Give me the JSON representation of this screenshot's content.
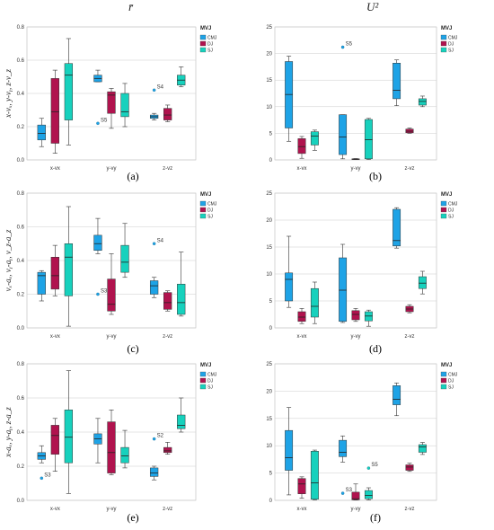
{
  "column_titles": [
    "r̄",
    "U²"
  ],
  "colors": {
    "CMJ": "#1ea3e6",
    "DJ": "#b0134e",
    "SJ": "#17d1bd",
    "whisker": "#333333",
    "grid": "#cccccc"
  },
  "chart_data": [
    {
      "type": "box",
      "panel_label": "(a)",
      "ylabel": "x-vₓ, y-vᵧ, z-v_z",
      "ylim": [
        0,
        0.8
      ],
      "yticks": [
        "0.0",
        "0.2",
        "0.4",
        "0.6",
        "0.8"
      ],
      "legend_title": "MVJ",
      "categories": [
        "x-vx",
        "y-vy",
        "z-vz"
      ],
      "series": [
        {
          "name": "CMJ",
          "boxes": [
            {
              "min": 0.08,
              "q1": 0.12,
              "median": 0.16,
              "q3": 0.21,
              "max": 0.25
            },
            {
              "min": 0.47,
              "q1": 0.47,
              "median": 0.49,
              "q3": 0.51,
              "max": 0.54
            },
            {
              "min": 0.24,
              "q1": 0.25,
              "median": 0.26,
              "q3": 0.27,
              "max": 0.28
            }
          ]
        },
        {
          "name": "DJ",
          "boxes": [
            {
              "min": 0.04,
              "q1": 0.1,
              "median": 0.29,
              "q3": 0.49,
              "max": 0.54
            },
            {
              "min": 0.19,
              "q1": 0.28,
              "median": 0.39,
              "q3": 0.41,
              "max": 0.43
            },
            {
              "min": 0.23,
              "q1": 0.24,
              "median": 0.27,
              "q3": 0.31,
              "max": 0.33
            }
          ]
        },
        {
          "name": "SJ",
          "boxes": [
            {
              "min": 0.09,
              "q1": 0.24,
              "median": 0.51,
              "q3": 0.58,
              "max": 0.73
            },
            {
              "min": 0.2,
              "q1": 0.26,
              "median": 0.29,
              "q3": 0.4,
              "max": 0.46
            },
            {
              "min": 0.44,
              "q1": 0.45,
              "median": 0.48,
              "q3": 0.51,
              "max": 0.56
            }
          ]
        }
      ],
      "outliers": [
        {
          "category": "y-vy",
          "series": "CMJ",
          "value": 0.22,
          "label": "S5"
        },
        {
          "category": "z-vz",
          "series": "CMJ",
          "value": 0.42,
          "label": "S4"
        }
      ]
    },
    {
      "type": "box",
      "panel_label": "(b)",
      "ylabel": "",
      "ylim": [
        0,
        25
      ],
      "yticks": [
        "0",
        "5",
        "10",
        "15",
        "20",
        "25"
      ],
      "legend_title": "MVJ",
      "categories": [
        "x-vx",
        "y-vy",
        "z-vz"
      ],
      "series": [
        {
          "name": "CMJ",
          "boxes": [
            {
              "min": 3.5,
              "q1": 6,
              "median": 12.3,
              "q3": 18.5,
              "max": 19.5
            },
            {
              "min": 0.2,
              "q1": 1,
              "median": 4.3,
              "q3": 8.5,
              "max": 8.5
            },
            {
              "min": 10.2,
              "q1": 11.5,
              "median": 13.1,
              "q3": 18.2,
              "max": 18.8
            }
          ]
        },
        {
          "name": "DJ",
          "boxes": [
            {
              "min": 0.3,
              "q1": 1.2,
              "median": 2.5,
              "q3": 4,
              "max": 4.4
            },
            {
              "min": 0.05,
              "q1": 0.1,
              "median": 0.15,
              "q3": 0.2,
              "max": 0.25
            },
            {
              "min": 5,
              "q1": 5.1,
              "median": 5.4,
              "q3": 5.8,
              "max": 6
            }
          ]
        },
        {
          "name": "SJ",
          "boxes": [
            {
              "min": 1.8,
              "q1": 2.8,
              "median": 4.5,
              "q3": 5.3,
              "max": 5.6
            },
            {
              "min": 0.1,
              "q1": 0.2,
              "median": 3.8,
              "q3": 7.6,
              "max": 7.8
            },
            {
              "min": 10,
              "q1": 10.3,
              "median": 11,
              "q3": 11.5,
              "max": 12
            }
          ]
        }
      ],
      "outliers": [
        {
          "category": "y-vy",
          "series": "CMJ",
          "value": 21.2,
          "label": "S5"
        }
      ]
    },
    {
      "type": "box",
      "panel_label": "(c)",
      "ylabel": "vₓ-aₓ, vᵧ-aᵧ, v_z-a_z",
      "ylim": [
        0,
        0.8
      ],
      "yticks": [
        "0.0",
        "0.2",
        "0.4",
        "0.6",
        "0.8"
      ],
      "legend_title": "MVJ",
      "categories": [
        "x-vx",
        "y-vy",
        "z-vz"
      ],
      "series": [
        {
          "name": "CMJ",
          "boxes": [
            {
              "min": 0.16,
              "q1": 0.2,
              "median": 0.31,
              "q3": 0.33,
              "max": 0.34
            },
            {
              "min": 0.44,
              "q1": 0.46,
              "median": 0.5,
              "q3": 0.55,
              "max": 0.65
            },
            {
              "min": 0.18,
              "q1": 0.2,
              "median": 0.25,
              "q3": 0.28,
              "max": 0.3
            }
          ]
        },
        {
          "name": "DJ",
          "boxes": [
            {
              "min": 0.19,
              "q1": 0.23,
              "median": 0.31,
              "q3": 0.42,
              "max": 0.49
            },
            {
              "min": 0.08,
              "q1": 0.1,
              "median": 0.14,
              "q3": 0.29,
              "max": 0.44
            },
            {
              "min": 0.1,
              "q1": 0.11,
              "median": 0.15,
              "q3": 0.21,
              "max": 0.22
            }
          ]
        },
        {
          "name": "SJ",
          "boxes": [
            {
              "min": 0.01,
              "q1": 0.19,
              "median": 0.42,
              "q3": 0.5,
              "max": 0.72
            },
            {
              "min": 0.3,
              "q1": 0.33,
              "median": 0.39,
              "q3": 0.49,
              "max": 0.62
            },
            {
              "min": 0.07,
              "q1": 0.08,
              "median": 0.15,
              "q3": 0.26,
              "max": 0.45
            }
          ]
        }
      ],
      "outliers": [
        {
          "category": "y-vy",
          "series": "CMJ",
          "value": 0.2,
          "label": "S3"
        },
        {
          "category": "z-vz",
          "series": "CMJ",
          "value": 0.5,
          "label": "S4"
        }
      ]
    },
    {
      "type": "box",
      "panel_label": "(d)",
      "ylabel": "",
      "ylim": [
        0,
        25
      ],
      "yticks": [
        "0",
        "5",
        "10",
        "15",
        "20",
        "25"
      ],
      "legend_title": "MVJ",
      "categories": [
        "x-vx",
        "y-vy",
        "z-vz"
      ],
      "series": [
        {
          "name": "CMJ",
          "boxes": [
            {
              "min": 3.8,
              "q1": 5,
              "median": 9,
              "q3": 10.2,
              "max": 17
            },
            {
              "min": 1,
              "q1": 1.2,
              "median": 7,
              "q3": 13,
              "max": 15.5
            },
            {
              "min": 14.8,
              "q1": 15.2,
              "median": 16.2,
              "q3": 22,
              "max": 22.3
            }
          ]
        },
        {
          "name": "DJ",
          "boxes": [
            {
              "min": 0.8,
              "q1": 1.2,
              "median": 2,
              "q3": 3,
              "max": 3.6
            },
            {
              "min": 1.2,
              "q1": 1.5,
              "median": 2.5,
              "q3": 3.2,
              "max": 3.6
            },
            {
              "min": 2.8,
              "q1": 3,
              "median": 3.5,
              "q3": 4,
              "max": 4.3
            }
          ]
        },
        {
          "name": "SJ",
          "boxes": [
            {
              "min": 0.8,
              "q1": 2,
              "median": 4,
              "q3": 7.3,
              "max": 8.5
            },
            {
              "min": 0.3,
              "q1": 1.3,
              "median": 2.2,
              "q3": 3,
              "max": 3.3
            },
            {
              "min": 6.3,
              "q1": 7.3,
              "median": 8.3,
              "q3": 9.5,
              "max": 10.5
            }
          ]
        }
      ],
      "outliers": []
    },
    {
      "type": "box",
      "panel_label": "(e)",
      "ylabel": "x-aₓ, y-aᵧ, z-a_z",
      "ylim": [
        0,
        0.8
      ],
      "yticks": [
        "0.0",
        "0.2",
        "0.4",
        "0.6",
        "0.8"
      ],
      "legend_title": "MVJ",
      "categories": [
        "x-vx",
        "y-vy",
        "z-vz"
      ],
      "series": [
        {
          "name": "CMJ",
          "boxes": [
            {
              "min": 0.22,
              "q1": 0.24,
              "median": 0.26,
              "q3": 0.28,
              "max": 0.32
            },
            {
              "min": 0.22,
              "q1": 0.33,
              "median": 0.36,
              "q3": 0.39,
              "max": 0.48
            },
            {
              "min": 0.12,
              "q1": 0.14,
              "median": 0.16,
              "q3": 0.19,
              "max": 0.2
            }
          ]
        },
        {
          "name": "DJ",
          "boxes": [
            {
              "min": 0.17,
              "q1": 0.27,
              "median": 0.38,
              "q3": 0.44,
              "max": 0.48
            },
            {
              "min": 0.15,
              "q1": 0.16,
              "median": 0.28,
              "q3": 0.46,
              "max": 0.53
            },
            {
              "min": 0.27,
              "q1": 0.28,
              "median": 0.29,
              "q3": 0.31,
              "max": 0.34
            }
          ]
        },
        {
          "name": "SJ",
          "boxes": [
            {
              "min": 0.04,
              "q1": 0.22,
              "median": 0.37,
              "q3": 0.53,
              "max": 0.76
            },
            {
              "min": 0.19,
              "q1": 0.22,
              "median": 0.26,
              "q3": 0.31,
              "max": 0.41
            },
            {
              "min": 0.4,
              "q1": 0.42,
              "median": 0.44,
              "q3": 0.5,
              "max": 0.6
            }
          ]
        }
      ],
      "outliers": [
        {
          "category": "x-vx",
          "series": "CMJ",
          "value": 0.13,
          "label": "S3"
        },
        {
          "category": "z-vz",
          "series": "CMJ",
          "value": 0.36,
          "label": "S2"
        }
      ]
    },
    {
      "type": "box",
      "panel_label": "(f)",
      "ylabel": "",
      "ylim": [
        0,
        25
      ],
      "yticks": [
        "0",
        "5",
        "10",
        "15",
        "20",
        "25"
      ],
      "legend_title": "MVJ",
      "categories": [
        "x-vx",
        "y-vy",
        "z-vz"
      ],
      "series": [
        {
          "name": "CMJ",
          "boxes": [
            {
              "min": 1,
              "q1": 5.5,
              "median": 7.8,
              "q3": 12.8,
              "max": 17
            },
            {
              "min": 7,
              "q1": 8,
              "median": 8.8,
              "q3": 11,
              "max": 11.8
            },
            {
              "min": 15.5,
              "q1": 17.5,
              "median": 18.5,
              "q3": 21,
              "max": 21.5
            }
          ]
        },
        {
          "name": "DJ",
          "boxes": [
            {
              "min": 0.4,
              "q1": 1.2,
              "median": 3,
              "q3": 4,
              "max": 4.3
            },
            {
              "min": 0.05,
              "q1": 0.1,
              "median": 0.3,
              "q3": 1.5,
              "max": 3
            },
            {
              "min": 5.3,
              "q1": 5.5,
              "median": 6.1,
              "q3": 6.5,
              "max": 6.8
            }
          ]
        },
        {
          "name": "SJ",
          "boxes": [
            {
              "min": 0.1,
              "q1": 0.2,
              "median": 3.2,
              "q3": 9,
              "max": 9.2
            },
            {
              "min": 0.1,
              "q1": 0.3,
              "median": 0.9,
              "q3": 1.8,
              "max": 2.3
            },
            {
              "min": 8.4,
              "q1": 8.8,
              "median": 9.8,
              "q3": 10.2,
              "max": 10.6
            }
          ]
        }
      ],
      "outliers": [
        {
          "category": "y-vy",
          "series": "CMJ",
          "value": 1.3,
          "label": "S3"
        },
        {
          "category": "y-vy",
          "series": "SJ",
          "value": 5.9,
          "label": "S5"
        }
      ]
    }
  ]
}
